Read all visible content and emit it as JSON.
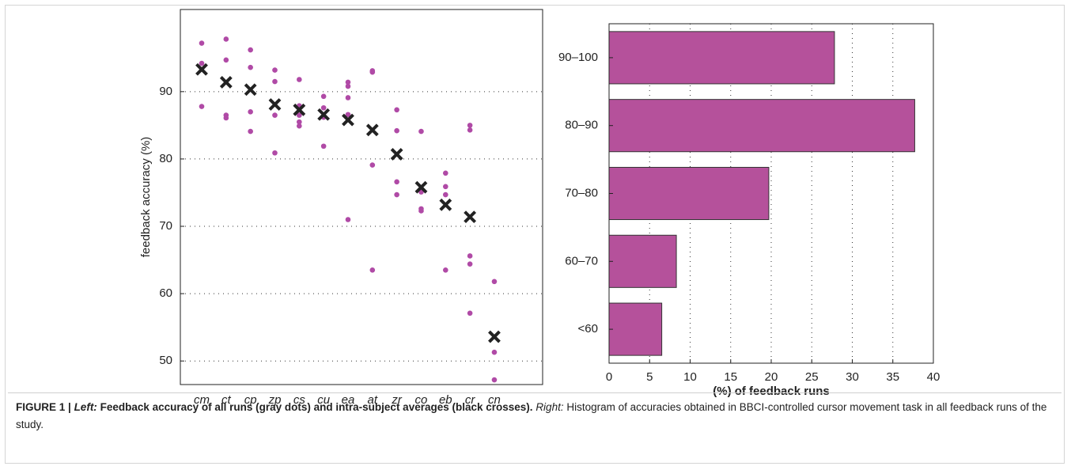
{
  "chart_data": [
    {
      "type": "scatter",
      "ylabel": "feedback accuracy (%)",
      "categories": [
        "cm",
        "ct",
        "cp",
        "zp",
        "cs",
        "cu",
        "ea",
        "at",
        "zr",
        "co",
        "eb",
        "cr",
        "cn"
      ],
      "runs": [
        [
          97.2,
          94.2,
          87.8
        ],
        [
          97.8,
          94.7,
          86.5,
          86.1
        ],
        [
          96.2,
          93.6,
          87.0,
          84.1
        ],
        [
          93.2,
          91.5,
          86.5,
          80.9
        ],
        [
          91.8,
          87.9,
          86.5,
          85.5,
          84.9
        ],
        [
          89.3,
          87.6,
          86.2,
          81.9
        ],
        [
          91.4,
          90.8,
          89.1,
          86.6,
          71.0
        ],
        [
          93.1,
          92.9,
          79.1,
          63.5
        ],
        [
          87.3,
          84.2,
          76.6,
          74.7
        ],
        [
          84.1,
          75.1,
          72.6,
          72.3
        ],
        [
          77.9,
          75.9,
          74.7,
          63.5
        ],
        [
          85.0,
          84.3,
          65.6,
          64.4,
          57.1
        ],
        [
          61.8,
          51.3,
          47.2
        ]
      ],
      "averages": [
        93.3,
        91.4,
        90.3,
        88.1,
        87.3,
        86.6,
        85.8,
        84.3,
        80.7,
        75.8,
        73.2,
        71.4,
        53.6
      ],
      "dot_color": "#b04aa6",
      "cross_color": "#222222",
      "ylim": [
        46.5,
        102.2
      ],
      "yticks": [
        50,
        60,
        70,
        80,
        90
      ],
      "grid": true
    },
    {
      "type": "bar",
      "orientation": "horizontal",
      "xlabel": "(%) of feedback runs",
      "categories": [
        "90–100",
        "80–90",
        "70–80",
        "60–70",
        "<60"
      ],
      "values": [
        27.8,
        37.7,
        19.7,
        8.3,
        6.5
      ],
      "color": "#b5519b",
      "xlim": [
        0,
        40
      ],
      "xticks": [
        0,
        5,
        10,
        15,
        20,
        25,
        30,
        35,
        40
      ],
      "grid": true
    }
  ],
  "caption": {
    "label": "FIGURE 1 |",
    "left_heading": "Left:",
    "left_text": "Feedback accuracy of all runs (gray dots) and intra-subject averages (black crosses).",
    "right_heading": "Right:",
    "right_text": "Histogram of accuracies obtained in BBCI-controlled cursor movement task in all feedback runs of the study."
  }
}
